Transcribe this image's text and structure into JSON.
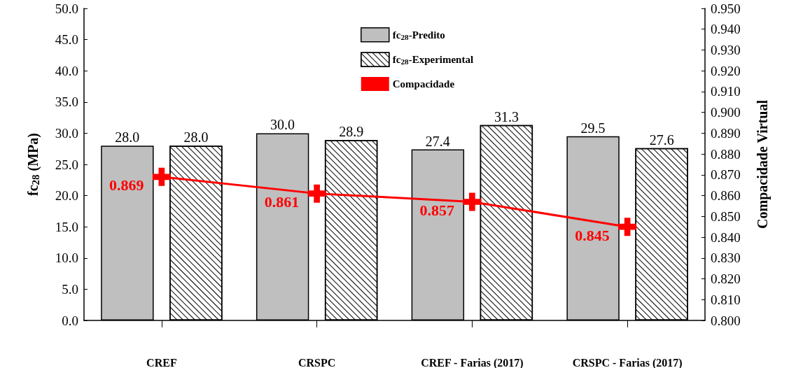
{
  "chart_data": {
    "type": "bar",
    "categories": [
      "CREF",
      "CRSPC",
      "CREF - Farias (2017)",
      "CRSPC - Farias (2017)"
    ],
    "ylabel": "fc$_{28}$ (MPa)",
    "y2label": "Compacidade Virtual",
    "series": [
      {
        "name": "fc$_{28}$-Predito",
        "color": "#bfbfbf",
        "values": [
          28.0,
          30.0,
          27.4,
          29.5
        ],
        "value_labels": [
          "28.0",
          "30.0",
          "27.4",
          "29.5"
        ]
      },
      {
        "name": "fc$_{28}$-Experimental",
        "color": "#ffffff",
        "values": [
          28.0,
          28.9,
          31.3,
          27.6
        ],
        "value_labels": [
          "28.0",
          "28.9",
          "31.3",
          "27.6"
        ]
      },
      {
        "name": "Compacidade",
        "type": "line",
        "axis": "y2",
        "color": "#ff0000",
        "marker": "cross",
        "values": [
          0.869,
          0.861,
          0.857,
          0.845
        ],
        "value_labels": [
          "0.869",
          "0.861",
          "0.857",
          "0.845"
        ]
      }
    ],
    "ylim": [
      0,
      50
    ],
    "yticks": [
      {
        "value": 0,
        "label": "0.0"
      },
      {
        "value": 5,
        "label": "5.0"
      },
      {
        "value": 10,
        "label": "10.0"
      },
      {
        "value": 15,
        "label": "15.0"
      },
      {
        "value": 20,
        "label": "20.0"
      },
      {
        "value": 25,
        "label": "25.0"
      },
      {
        "value": 30,
        "label": "30.0"
      },
      {
        "value": 35,
        "label": "35.0"
      },
      {
        "value": 40,
        "label": "40.0"
      },
      {
        "value": 45,
        "label": "45.0"
      },
      {
        "value": 50,
        "label": "50.0"
      }
    ],
    "y2lim": [
      0.8,
      0.95
    ],
    "y2ticks": [
      {
        "value": 0.8,
        "label": "0.800"
      },
      {
        "value": 0.81,
        "label": "0.810"
      },
      {
        "value": 0.82,
        "label": "0.820"
      },
      {
        "value": 0.83,
        "label": "0.830"
      },
      {
        "value": 0.84,
        "label": "0.840"
      },
      {
        "value": 0.85,
        "label": "0.850"
      },
      {
        "value": 0.86,
        "label": "0.860"
      },
      {
        "value": 0.87,
        "label": "0.870"
      },
      {
        "value": 0.88,
        "label": "0.880"
      },
      {
        "value": 0.89,
        "label": "0.890"
      },
      {
        "value": 0.9,
        "label": "0.900"
      },
      {
        "value": 0.91,
        "label": "0.910"
      },
      {
        "value": 0.92,
        "label": "0.920"
      },
      {
        "value": 0.93,
        "label": "0.930"
      },
      {
        "value": 0.94,
        "label": "0.940"
      },
      {
        "value": 0.95,
        "label": "0.950"
      }
    ],
    "legend": "top",
    "grid": false
  }
}
